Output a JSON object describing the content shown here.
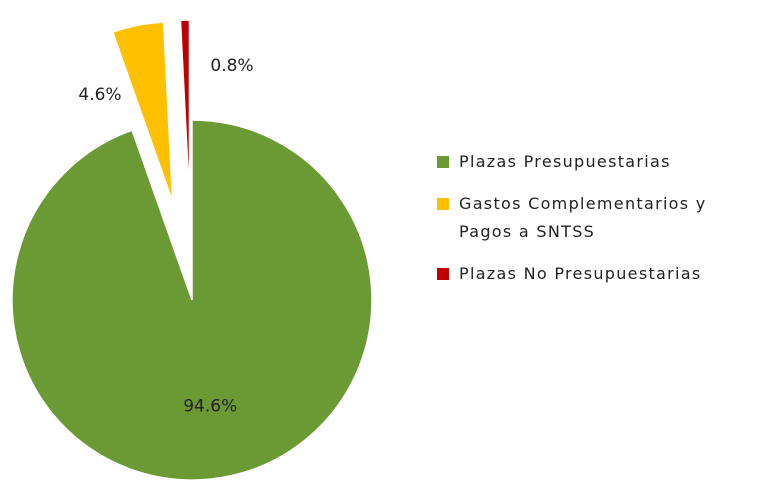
{
  "chart_data": {
    "type": "pie",
    "categories": [
      "Plazas Presupuestarias",
      "Gastos Complementarios y Pagos a SNTSS",
      "Plazas No Presupuestarias"
    ],
    "values": [
      94.6,
      4.6,
      0.8
    ],
    "value_labels": [
      "94.6%",
      "4.6%",
      "0.8%"
    ],
    "colors": [
      "#6b9a35",
      "#ffc000",
      "#c00000"
    ],
    "legend": "right"
  }
}
